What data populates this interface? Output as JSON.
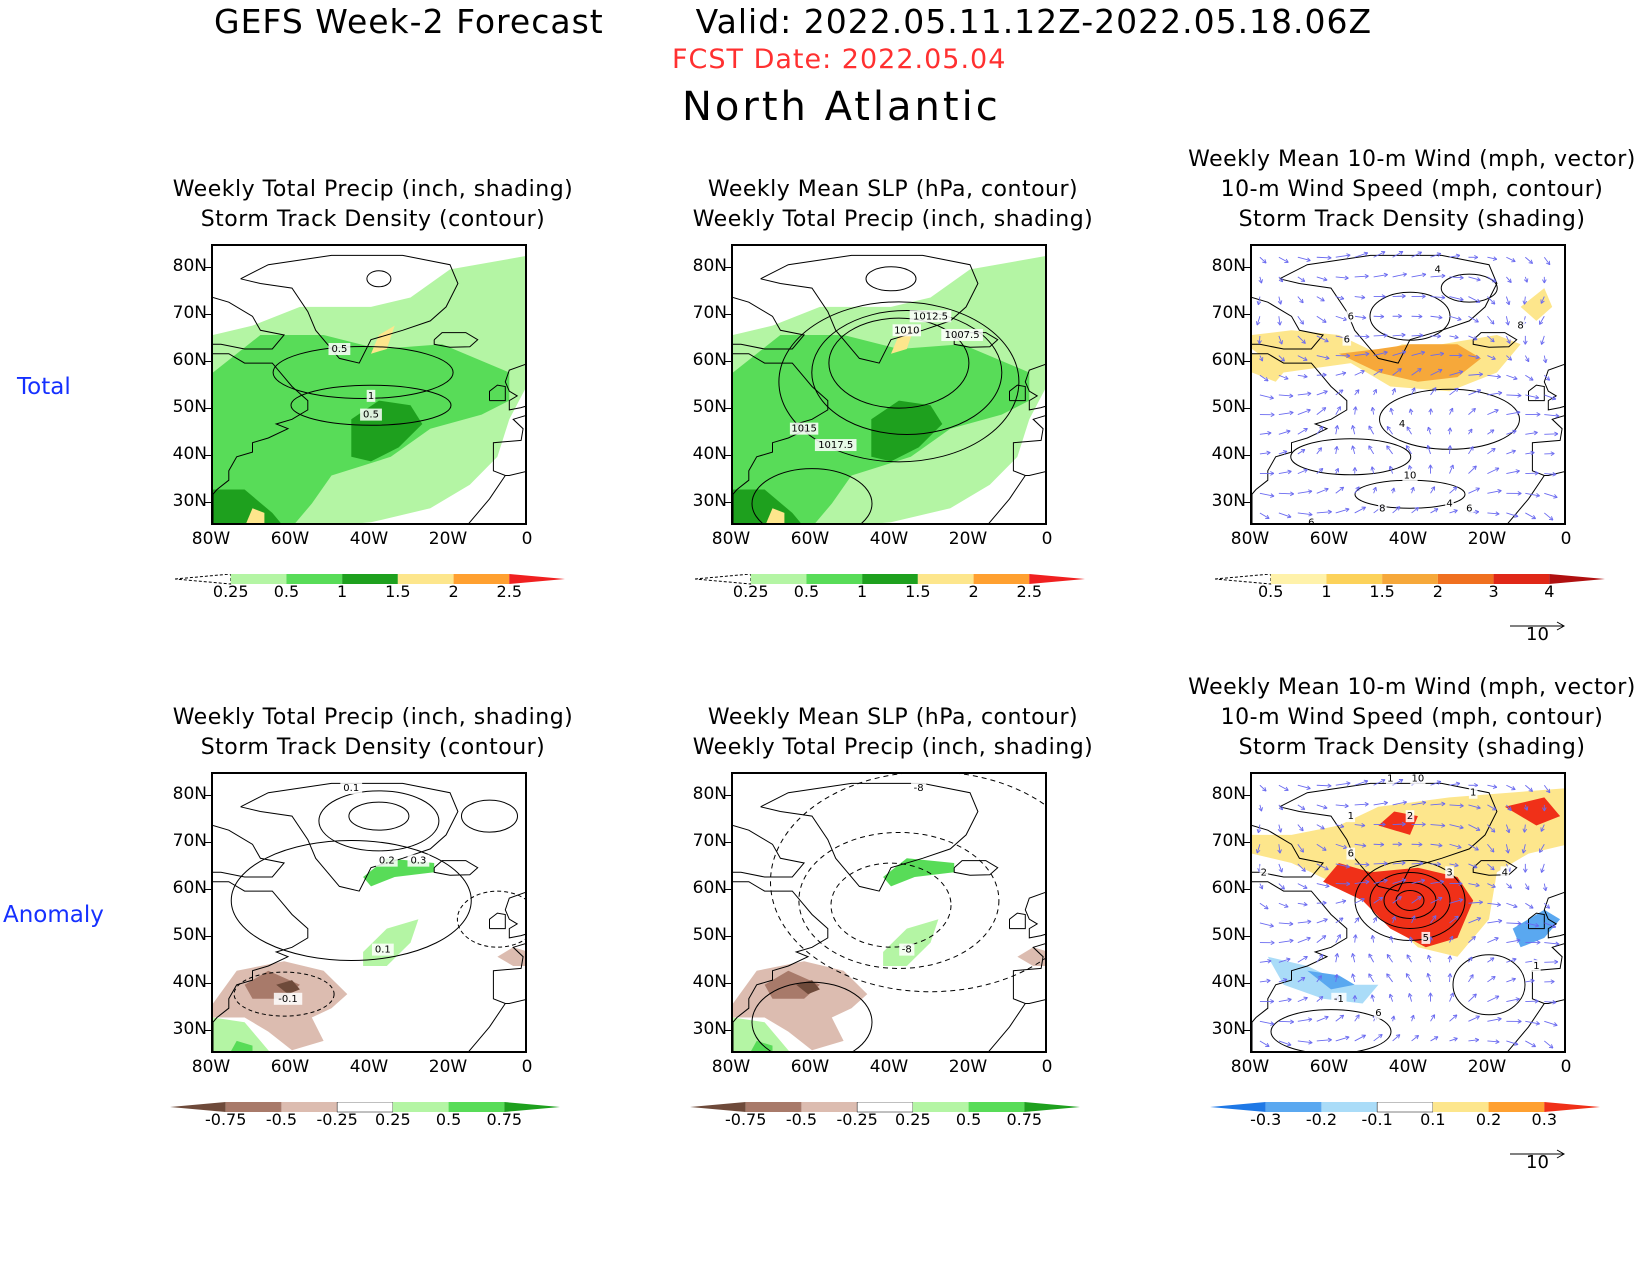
{
  "header": {
    "title": "GEFS Week-2 Forecast        Valid: 2022.05.11.12Z-2022.05.18.06Z",
    "fcst_date": "FCST Date: 2022.05.04",
    "region": "North Atlantic"
  },
  "rows": [
    {
      "label": "Total"
    },
    {
      "label": "Anomaly"
    }
  ],
  "axes": {
    "lat_ticks": [
      "80N",
      "70N",
      "60N",
      "50N",
      "40N",
      "30N"
    ],
    "lon_ticks": [
      "80W",
      "60W",
      "40W",
      "20W",
      "0"
    ],
    "lon_range": [
      -80,
      0
    ],
    "lat_range": [
      25,
      85
    ]
  },
  "panels": [
    {
      "title1": "Weekly Total Precip (inch, shading)",
      "title2": "Storm Track Density (contour)",
      "title3": "",
      "colorbar": {
        "labels": [
          "0.25",
          "0.5",
          "1",
          "1.5",
          "2",
          "2.5"
        ],
        "colors": [
          "#ffffff",
          "#b4f5a4",
          "#58dc58",
          "#1ea01e",
          "#fde68c",
          "#ffa030",
          "#f02020"
        ]
      },
      "contour_labels": [
        "0.5",
        "1",
        "0.5"
      ]
    },
    {
      "title1": "Weekly Mean SLP (hPa, contour)",
      "title2": "Weekly Total Precip (inch, shading)",
      "title3": "",
      "colorbar": {
        "labels": [
          "0.25",
          "0.5",
          "1",
          "1.5",
          "2",
          "2.5"
        ],
        "colors": [
          "#ffffff",
          "#b4f5a4",
          "#58dc58",
          "#1ea01e",
          "#fde68c",
          "#ffa030",
          "#f02020"
        ]
      },
      "contour_labels": [
        "1012.5",
        "1010",
        "1007.5",
        "1015",
        "1017.5"
      ]
    },
    {
      "title1": "Weekly Mean 10-m Wind (mph, vector)",
      "title2": "10-m Wind Speed (mph, contour)",
      "title3": "Storm Track Density (shading)",
      "colorbar": {
        "labels": [
          "0.5",
          "1",
          "1.5",
          "2",
          "3",
          "4"
        ],
        "colors": [
          "#ffffff",
          "#fff2aa",
          "#fcd25a",
          "#f6a83a",
          "#f07020",
          "#e02818",
          "#b01010"
        ]
      },
      "vector_ref": "10",
      "contour_labels": [
        "4",
        "6",
        "6",
        "4",
        "8",
        "10",
        "4",
        "6",
        "6",
        "8"
      ]
    },
    {
      "title1": "Weekly Total Precip (inch, shading)",
      "title2": "Storm Track Density (contour)",
      "title3": "",
      "colorbar": {
        "labels": [
          "-0.75",
          "-0.5",
          "-0.25",
          "0.25",
          "0.5",
          "0.75"
        ],
        "colors": [
          "#6e4a3a",
          "#a87a6a",
          "#dcbcb0",
          "#ffffff",
          "#b4f5a4",
          "#58dc58",
          "#1ea01e"
        ]
      },
      "contour_labels": [
        "0.1",
        "0.2",
        "0.3",
        "0.1",
        "-0.1"
      ]
    },
    {
      "title1": "Weekly Mean SLP (hPa, contour)",
      "title2": "Weekly Total Precip (inch, shading)",
      "title3": "",
      "colorbar": {
        "labels": [
          "-0.75",
          "-0.5",
          "-0.25",
          "0.25",
          "0.5",
          "0.75"
        ],
        "colors": [
          "#6e4a3a",
          "#a87a6a",
          "#dcbcb0",
          "#ffffff",
          "#b4f5a4",
          "#58dc58",
          "#1ea01e"
        ]
      },
      "contour_labels": [
        "-8",
        "-8"
      ]
    },
    {
      "title1": "Weekly Mean 10-m Wind (mph, vector)",
      "title2": "10-m Wind Speed (mph, contour)",
      "title3": "Storm Track Density (shading)",
      "colorbar": {
        "labels": [
          "-0.3",
          "-0.2",
          "-0.1",
          "0.1",
          "0.2",
          "0.3"
        ],
        "colors": [
          "#1e78e6",
          "#5aa8f0",
          "#aadcf8",
          "#ffffff",
          "#fde68c",
          "#ffa030",
          "#f03018"
        ]
      },
      "vector_ref": "10",
      "contour_labels": [
        "1",
        "10",
        "2",
        "1",
        "2",
        "6",
        "3",
        "4",
        "5",
        "6",
        "1",
        "-1",
        "1"
      ]
    }
  ]
}
